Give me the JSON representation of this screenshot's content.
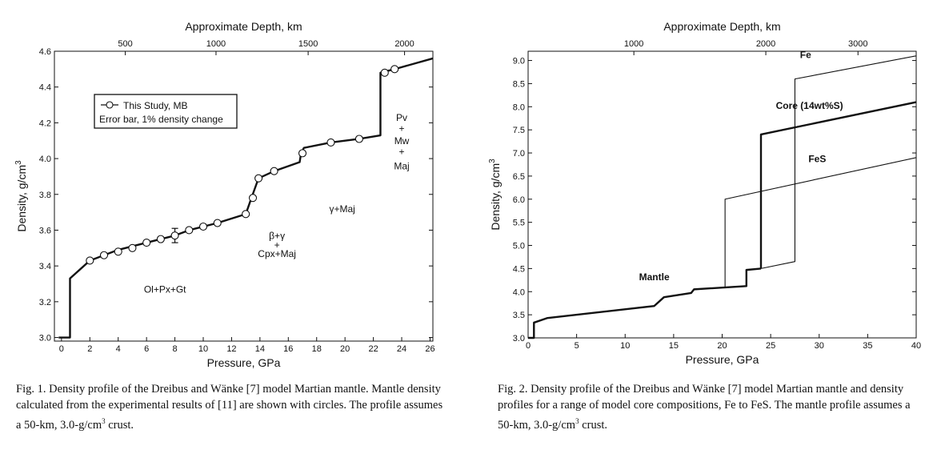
{
  "figure1": {
    "chart_data": {
      "type": "line",
      "x_label": "Pressure, GPa",
      "y_label": "Density, g/cm",
      "y_label_sup": "3",
      "top_axis_label": "Approximate Depth, km",
      "xlim": [
        -0.5,
        26.2
      ],
      "ylim": [
        2.98,
        4.6
      ],
      "x_ticks": [
        0,
        2,
        4,
        6,
        8,
        10,
        12,
        14,
        16,
        18,
        20,
        22,
        24,
        26
      ],
      "x_tick_labels": [
        "0",
        "2",
        "4",
        "6",
        "8",
        "10",
        "12",
        "14",
        "16",
        "18",
        "20",
        "22",
        "24",
        "26"
      ],
      "y_ticks": [
        3.0,
        3.2,
        3.4,
        3.6,
        3.8,
        4.0,
        4.2,
        4.4,
        4.6
      ],
      "y_tick_labels": [
        "3.0",
        "3.2",
        "3.4",
        "3.6",
        "3.8",
        "4.0",
        "4.2",
        "4.4",
        "4.6"
      ],
      "top_ticks": [
        {
          "label": "500",
          "x": 4.5
        },
        {
          "label": "1000",
          "x": 10.9
        },
        {
          "label": "1500",
          "x": 17.4
        },
        {
          "label": "2000",
          "x": 24.2
        }
      ],
      "profile": [
        [
          -0.2,
          3.0
        ],
        [
          0.6,
          3.0
        ],
        [
          0.6,
          3.33
        ],
        [
          2,
          3.43
        ],
        [
          4,
          3.49
        ],
        [
          6,
          3.53
        ],
        [
          8,
          3.57
        ],
        [
          9,
          3.6
        ],
        [
          11,
          3.64
        ],
        [
          13,
          3.69
        ],
        [
          13.4,
          3.78
        ],
        [
          13.9,
          3.89
        ],
        [
          15,
          3.93
        ],
        [
          16.8,
          3.98
        ],
        [
          16.9,
          4.03
        ],
        [
          17.1,
          4.06
        ],
        [
          19,
          4.09
        ],
        [
          21,
          4.11
        ],
        [
          22.5,
          4.13
        ],
        [
          22.5,
          4.48
        ],
        [
          23.5,
          4.5
        ],
        [
          26.2,
          4.56
        ]
      ],
      "points": [
        [
          2,
          3.43
        ],
        [
          3,
          3.46
        ],
        [
          4,
          3.48
        ],
        [
          5,
          3.5
        ],
        [
          6,
          3.53
        ],
        [
          7,
          3.55
        ],
        [
          8,
          3.57
        ],
        [
          9,
          3.6
        ],
        [
          10,
          3.62
        ],
        [
          11,
          3.64
        ],
        [
          13,
          3.69
        ],
        [
          13.5,
          3.78
        ],
        [
          13.9,
          3.89
        ],
        [
          15,
          3.93
        ],
        [
          17,
          4.03
        ],
        [
          19,
          4.09
        ],
        [
          21,
          4.11
        ],
        [
          22.8,
          4.48
        ],
        [
          23.5,
          4.5
        ]
      ],
      "error_bar": {
        "x": 8,
        "y": 3.57,
        "low": 3.53,
        "high": 3.61
      },
      "legend": {
        "series": "This Study, MB",
        "note": "Error bar, 1% density change"
      },
      "annotations": [
        {
          "text": "Ol+Px+Gt",
          "x": 7.3,
          "y": 3.25
        },
        {
          "text": "β+γ",
          "x": 15.2,
          "y": 3.55
        },
        {
          "text": "+",
          "x": 15.2,
          "y": 3.5
        },
        {
          "text": "Cpx+Maj",
          "x": 15.2,
          "y": 3.45
        },
        {
          "text": "γ+Maj",
          "x": 19.8,
          "y": 3.7
        },
        {
          "text": "Pv",
          "x": 24,
          "y": 4.21
        },
        {
          "text": "+",
          "x": 24,
          "y": 4.15
        },
        {
          "text": "Mw",
          "x": 24,
          "y": 4.08
        },
        {
          "text": "+",
          "x": 24,
          "y": 4.02
        },
        {
          "text": "Maj",
          "x": 24,
          "y": 3.94
        }
      ]
    },
    "caption": {
      "label": "Fig. 1.",
      "text": "Density profile of the Dreibus and Wänke [7] model Martian mantle. Mantle density calculated from the experimental results of [11] are shown with circles. The profile assumes a 50-km, 3.0-g/cm",
      "sup": "3",
      "end": " crust."
    }
  },
  "figure2": {
    "chart_data": {
      "type": "line",
      "x_label": "Pressure, GPa",
      "y_label": "Density, g/cm",
      "y_label_sup": "3",
      "top_axis_label": "Approximate Depth, km",
      "xlim": [
        0,
        40
      ],
      "ylim": [
        3.0,
        9.2
      ],
      "x_ticks": [
        0,
        5,
        10,
        15,
        20,
        25,
        30,
        35,
        40
      ],
      "x_tick_labels": [
        "0",
        "5",
        "10",
        "15",
        "20",
        "25",
        "30",
        "35",
        "40"
      ],
      "y_ticks": [
        3.0,
        3.5,
        4.0,
        4.5,
        5.0,
        5.5,
        6.0,
        6.5,
        7.0,
        7.5,
        8.0,
        8.5,
        9.0
      ],
      "y_tick_labels": [
        "3.0",
        "3.5",
        "4.0",
        "4.5",
        "5.0",
        "5.5",
        "6.0",
        "6.5",
        "7.0",
        "7.5",
        "8.0",
        "8.5",
        "9.0"
      ],
      "top_ticks": [
        {
          "label": "1000",
          "x": 10.9
        },
        {
          "label": "2000",
          "x": 24.5
        },
        {
          "label": "3000",
          "x": 34
        }
      ],
      "series": [
        {
          "name": "Mantle",
          "weight": "bold",
          "points": [
            [
              0,
              3.0
            ],
            [
              0.6,
              3.0
            ],
            [
              0.6,
              3.33
            ],
            [
              2,
              3.43
            ],
            [
              13,
              3.69
            ],
            [
              14,
              3.88
            ],
            [
              16.8,
              3.97
            ],
            [
              17.1,
              4.05
            ],
            [
              22.5,
              4.12
            ],
            [
              22.5,
              4.47
            ],
            [
              24,
              4.5
            ]
          ]
        },
        {
          "name": "Core (14wt%S)",
          "weight": "bold",
          "points": [
            [
              24,
              4.5
            ],
            [
              24,
              7.4
            ],
            [
              40,
              8.1
            ]
          ]
        },
        {
          "name": "Fe",
          "weight": "thin",
          "points": [
            [
              24,
              4.5
            ],
            [
              27.5,
              4.65
            ],
            [
              27.5,
              8.6
            ],
            [
              40,
              9.1
            ]
          ]
        },
        {
          "name": "FeS",
          "weight": "thin",
          "points": [
            [
              20.3,
              4.1
            ],
            [
              20.3,
              6.0
            ],
            [
              40,
              6.9
            ]
          ]
        }
      ],
      "series_labels": [
        {
          "text": "Fe",
          "x": 28.6,
          "y": 9.05
        },
        {
          "text": "Core (14wt%S)",
          "x": 29,
          "y": 7.95
        },
        {
          "text": "FeS",
          "x": 29.8,
          "y": 6.8
        },
        {
          "text": "Mantle",
          "x": 13,
          "y": 4.25
        }
      ]
    },
    "caption": {
      "label": "Fig. 2.",
      "text": "Density profile of the Dreibus and Wänke [7] model Martian mantle and density profiles for a range of model core compositions, Fe to FeS. The mantle profile assumes a 50-km, 3.0-g/cm",
      "sup": "3",
      "end": " crust."
    }
  }
}
